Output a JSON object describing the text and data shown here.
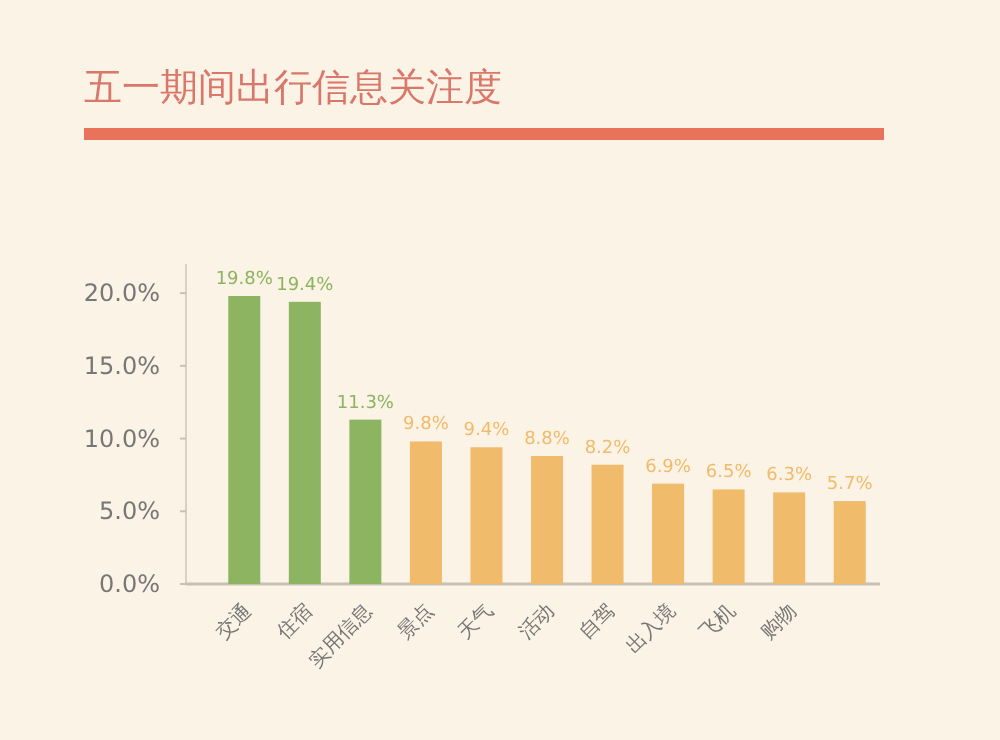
{
  "chart_data": {
    "type": "bar",
    "title": "五一期间出行信息关注度",
    "categories": [
      "交通",
      "住宿",
      "实用信息",
      "景点",
      "天气",
      "活动",
      "自驾",
      "出入境",
      "飞机",
      "购物",
      null
    ],
    "values": [
      19.8,
      19.4,
      11.3,
      9.8,
      9.4,
      8.8,
      8.2,
      6.9,
      6.5,
      6.3,
      5.7
    ],
    "value_labels": [
      "19.8%",
      "19.4%",
      "11.3%",
      "9.8%",
      "9.4%",
      "8.8%",
      "8.2%",
      "6.9%",
      "6.5%",
      "6.3%",
      "5.7%"
    ],
    "colors": [
      "#8db460",
      "#8db460",
      "#8db460",
      "#f0bb6a",
      "#f0bb6a",
      "#f0bb6a",
      "#f0bb6a",
      "#f0bb6a",
      "#f0bb6a",
      "#f0bb6a",
      "#f0bb6a"
    ],
    "ylim": [
      0,
      22
    ],
    "yticks": [
      {
        "value": 0,
        "label": "0.0%"
      },
      {
        "value": 5,
        "label": "5.0%"
      },
      {
        "value": 10,
        "label": "10.0%"
      },
      {
        "value": 15,
        "label": "15.0%"
      },
      {
        "value": 20,
        "label": "20.0%"
      }
    ]
  }
}
